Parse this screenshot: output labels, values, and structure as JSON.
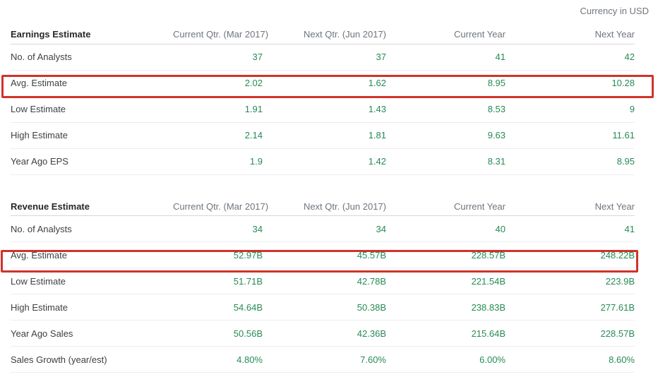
{
  "currency_note": "Currency in USD",
  "colors": {
    "value_green": "#278a55",
    "annotation_red": "#d0332a"
  },
  "tables": [
    {
      "title": "Earnings Estimate",
      "columns": [
        "Current Qtr. (Mar 2017)",
        "Next Qtr. (Jun 2017)",
        "Current Year",
        "Next Year"
      ],
      "rows": [
        {
          "label": "No. of Analysts",
          "values": [
            "37",
            "37",
            "41",
            "42"
          ],
          "highlighted": false
        },
        {
          "label": "Avg. Estimate",
          "values": [
            "2.02",
            "1.62",
            "8.95",
            "10.28"
          ],
          "highlighted": true
        },
        {
          "label": "Low Estimate",
          "values": [
            "1.91",
            "1.43",
            "8.53",
            "9"
          ],
          "highlighted": false
        },
        {
          "label": "High Estimate",
          "values": [
            "2.14",
            "1.81",
            "9.63",
            "11.61"
          ],
          "highlighted": false
        },
        {
          "label": "Year Ago EPS",
          "values": [
            "1.9",
            "1.42",
            "8.31",
            "8.95"
          ],
          "highlighted": false
        }
      ]
    },
    {
      "title": "Revenue Estimate",
      "columns": [
        "Current Qtr. (Mar 2017)",
        "Next Qtr. (Jun 2017)",
        "Current Year",
        "Next Year"
      ],
      "rows": [
        {
          "label": "No. of Analysts",
          "values": [
            "34",
            "34",
            "40",
            "41"
          ],
          "highlighted": false
        },
        {
          "label": "Avg. Estimate",
          "values": [
            "52.97B",
            "45.57B",
            "228.57B",
            "248.22B"
          ],
          "highlighted": true
        },
        {
          "label": "Low Estimate",
          "values": [
            "51.71B",
            "42.78B",
            "221.54B",
            "223.9B"
          ],
          "highlighted": false
        },
        {
          "label": "High Estimate",
          "values": [
            "54.64B",
            "50.38B",
            "238.83B",
            "277.61B"
          ],
          "highlighted": false
        },
        {
          "label": "Year Ago Sales",
          "values": [
            "50.56B",
            "42.36B",
            "215.64B",
            "228.57B"
          ],
          "highlighted": false
        },
        {
          "label": "Sales Growth (year/est)",
          "values": [
            "4.80%",
            "7.60%",
            "6.00%",
            "8.60%"
          ],
          "highlighted": false
        }
      ]
    }
  ]
}
